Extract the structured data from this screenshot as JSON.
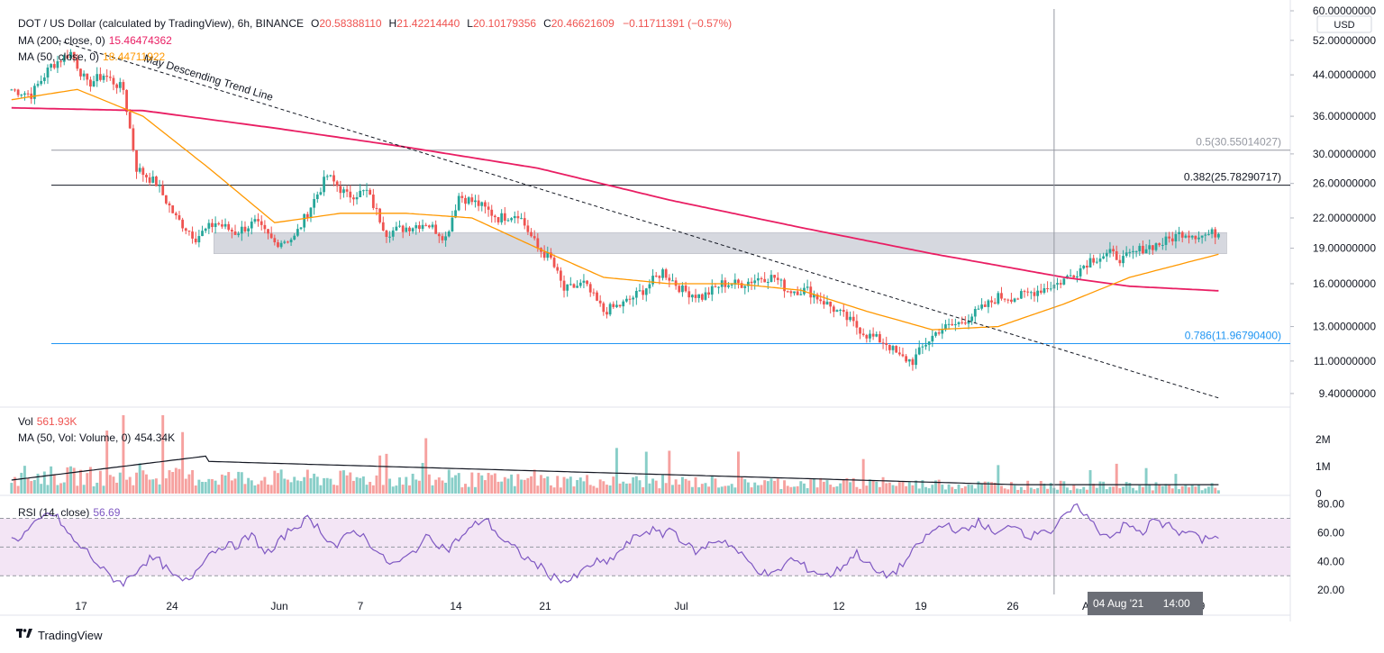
{
  "header": {
    "symbol": "DOT / US Dollar (calculated by TradingView), 6h, BINANCE",
    "ohlc": {
      "o_label": "O",
      "o": "20.58388110",
      "h_label": "H",
      "h": "21.42214440",
      "l_label": "L",
      "l": "20.10179356",
      "c_label": "C",
      "c": "20.46621609",
      "change": "−0.11711391 (−0.57%)"
    },
    "ma200_label": "MA (200, close, 0)",
    "ma200_value": "15.46474362",
    "ma50_label": "MA (50, close, 0)",
    "ma50_value": "18.44711922",
    "vol_label": "Vol",
    "vol_value": "561.93K",
    "volma_label": "MA (50, Vol: Volume, 0)",
    "volma_value": "454.34K",
    "rsi_label": "RSI (14, close)",
    "rsi_value": "56.69"
  },
  "currency": "USD",
  "colors": {
    "up": "#26a69a",
    "down": "#ef5350",
    "ma200": "#e91e63",
    "ma50": "#ff9800",
    "rsi": "#7e57c2",
    "rsi_band": "#f3e5f5",
    "zone": "#d1d4dc",
    "fib_blue": "#2196f3"
  },
  "chart_data": [
    {
      "type": "candlestick",
      "title": "DOT / US Dollar (calculated by TradingView), 6h, BINANCE",
      "y_scale": "log",
      "ylim": [
        8.8,
        60
      ],
      "y_ticks": [
        "60.00000000",
        "52.00000000",
        "44.00000000",
        "36.00000000",
        "30.00000000",
        "26.00000000",
        "22.00000000",
        "19.00000000",
        "16.00000000",
        "13.00000000",
        "11.00000000",
        "9.40000000"
      ],
      "x_ticks": [
        "17",
        "24",
        "Jun",
        "7",
        "14",
        "21",
        "Jul",
        "12",
        "19",
        "26",
        "A",
        "9"
      ],
      "price_path": [
        [
          0,
          41
        ],
        [
          6,
          40
        ],
        [
          12,
          46
        ],
        [
          18,
          49
        ],
        [
          23,
          42
        ],
        [
          28,
          44
        ],
        [
          34,
          41
        ],
        [
          38,
          28
        ],
        [
          44,
          26
        ],
        [
          50,
          22
        ],
        [
          56,
          20
        ],
        [
          62,
          21.5
        ],
        [
          68,
          20.5
        ],
        [
          74,
          21.5
        ],
        [
          80,
          19.5
        ],
        [
          86,
          20
        ],
        [
          92,
          24
        ],
        [
          96,
          27
        ],
        [
          102,
          24.5
        ],
        [
          108,
          25
        ],
        [
          114,
          20.5
        ],
        [
          120,
          21
        ],
        [
          126,
          21.5
        ],
        [
          132,
          20
        ],
        [
          136,
          24.5
        ],
        [
          142,
          23.5
        ],
        [
          148,
          22
        ],
        [
          154,
          22.5
        ],
        [
          160,
          19
        ],
        [
          164,
          18
        ],
        [
          168,
          15.5
        ],
        [
          174,
          16
        ],
        [
          180,
          14
        ],
        [
          186,
          14.5
        ],
        [
          192,
          15.5
        ],
        [
          198,
          17
        ],
        [
          204,
          15.5
        ],
        [
          210,
          15
        ],
        [
          216,
          16
        ],
        [
          222,
          16
        ],
        [
          228,
          16.5
        ],
        [
          232,
          16.5
        ],
        [
          236,
          15.5
        ],
        [
          242,
          15.5
        ],
        [
          248,
          14.5
        ],
        [
          254,
          13.5
        ],
        [
          260,
          12.5
        ],
        [
          266,
          12
        ],
        [
          270,
          11.2
        ],
        [
          274,
          11
        ],
        [
          278,
          12
        ],
        [
          282,
          12.8
        ],
        [
          288,
          13.2
        ],
        [
          294,
          14
        ],
        [
          300,
          15
        ],
        [
          306,
          15
        ],
        [
          312,
          15.5
        ],
        [
          318,
          16
        ],
        [
          324,
          17
        ],
        [
          328,
          18
        ],
        [
          334,
          18.5
        ],
        [
          338,
          18
        ],
        [
          344,
          19
        ],
        [
          350,
          19.5
        ],
        [
          356,
          20.5
        ],
        [
          362,
          20.2
        ],
        [
          367,
          20.5
        ]
      ],
      "ma200_path": [
        [
          0,
          37.5
        ],
        [
          40,
          37
        ],
        [
          80,
          34
        ],
        [
          120,
          31
        ],
        [
          160,
          28
        ],
        [
          200,
          24
        ],
        [
          240,
          21
        ],
        [
          280,
          18.5
        ],
        [
          320,
          16.5
        ],
        [
          340,
          15.8
        ],
        [
          367,
          15.46
        ]
      ],
      "ma50_path": [
        [
          0,
          39
        ],
        [
          20,
          41
        ],
        [
          40,
          36
        ],
        [
          60,
          28
        ],
        [
          80,
          21.5
        ],
        [
          100,
          22.5
        ],
        [
          120,
          22.5
        ],
        [
          140,
          22
        ],
        [
          160,
          19
        ],
        [
          180,
          16.5
        ],
        [
          200,
          16
        ],
        [
          220,
          16
        ],
        [
          240,
          15.5
        ],
        [
          260,
          14
        ],
        [
          280,
          12.8
        ],
        [
          300,
          13
        ],
        [
          320,
          14.5
        ],
        [
          340,
          16.5
        ],
        [
          367,
          18.45
        ]
      ],
      "trend_line": {
        "label": "May Descending Trend Line",
        "from": [
          14,
          52
        ],
        "to": [
          367,
          9.2
        ]
      },
      "resistance_zone": {
        "from_bar": 62,
        "to_bar": 370,
        "low": 18.5,
        "high": 20.5
      },
      "fib_levels": [
        {
          "label": "0.5(30.55014027)",
          "value": 30.55014027,
          "color": "#9598a1"
        },
        {
          "label": "0.382(25.78290717)",
          "value": 25.78290717,
          "color": "#131722"
        },
        {
          "label": "0.786(11.96790400)",
          "value": 11.967904,
          "color": "#2196f3"
        }
      ],
      "crosshair": {
        "bar": 317,
        "label": "04 Aug '21",
        "time_label": "14:00"
      }
    },
    {
      "type": "bar",
      "title": "Vol",
      "y_ticks": [
        "2M",
        "1M",
        "0"
      ],
      "ylim": [
        0,
        3000000
      ],
      "ma50_value": "454.34K",
      "note": "daily volume bars, colored by candle direction"
    },
    {
      "type": "line",
      "title": "RSI (14, close)",
      "y_ticks": [
        "80.00",
        "60.00",
        "40.00",
        "20.00"
      ],
      "ylim": [
        17,
        86
      ],
      "band": [
        30,
        70
      ],
      "midline": 50,
      "values": [
        55,
        57,
        63,
        68,
        74,
        70,
        60,
        52,
        48,
        40,
        33,
        28,
        25,
        30,
        38,
        42,
        40,
        32,
        27,
        26,
        35,
        45,
        48,
        52,
        50,
        55,
        58,
        48,
        46,
        55,
        62,
        66,
        70,
        64,
        56,
        50,
        57,
        62,
        57,
        50,
        42,
        38,
        40,
        45,
        52,
        58,
        52,
        48,
        55,
        60,
        66,
        70,
        62,
        54,
        50,
        44,
        40,
        36,
        30,
        28,
        26,
        30,
        36,
        40,
        38,
        44,
        50,
        56,
        60,
        62,
        58,
        64,
        56,
        50,
        46,
        52,
        55,
        54,
        48,
        42,
        36,
        32,
        30,
        36,
        42,
        38,
        34,
        32,
        30,
        34,
        40,
        46,
        40,
        33,
        30,
        32,
        38,
        46,
        54,
        60,
        64,
        66,
        60,
        62,
        68,
        64,
        58,
        62,
        67,
        60,
        57,
        64,
        60,
        68,
        75,
        78,
        70,
        62,
        58,
        60,
        66,
        62,
        60,
        70,
        64,
        66,
        58,
        62,
        54,
        58,
        56
      ]
    }
  ]
}
